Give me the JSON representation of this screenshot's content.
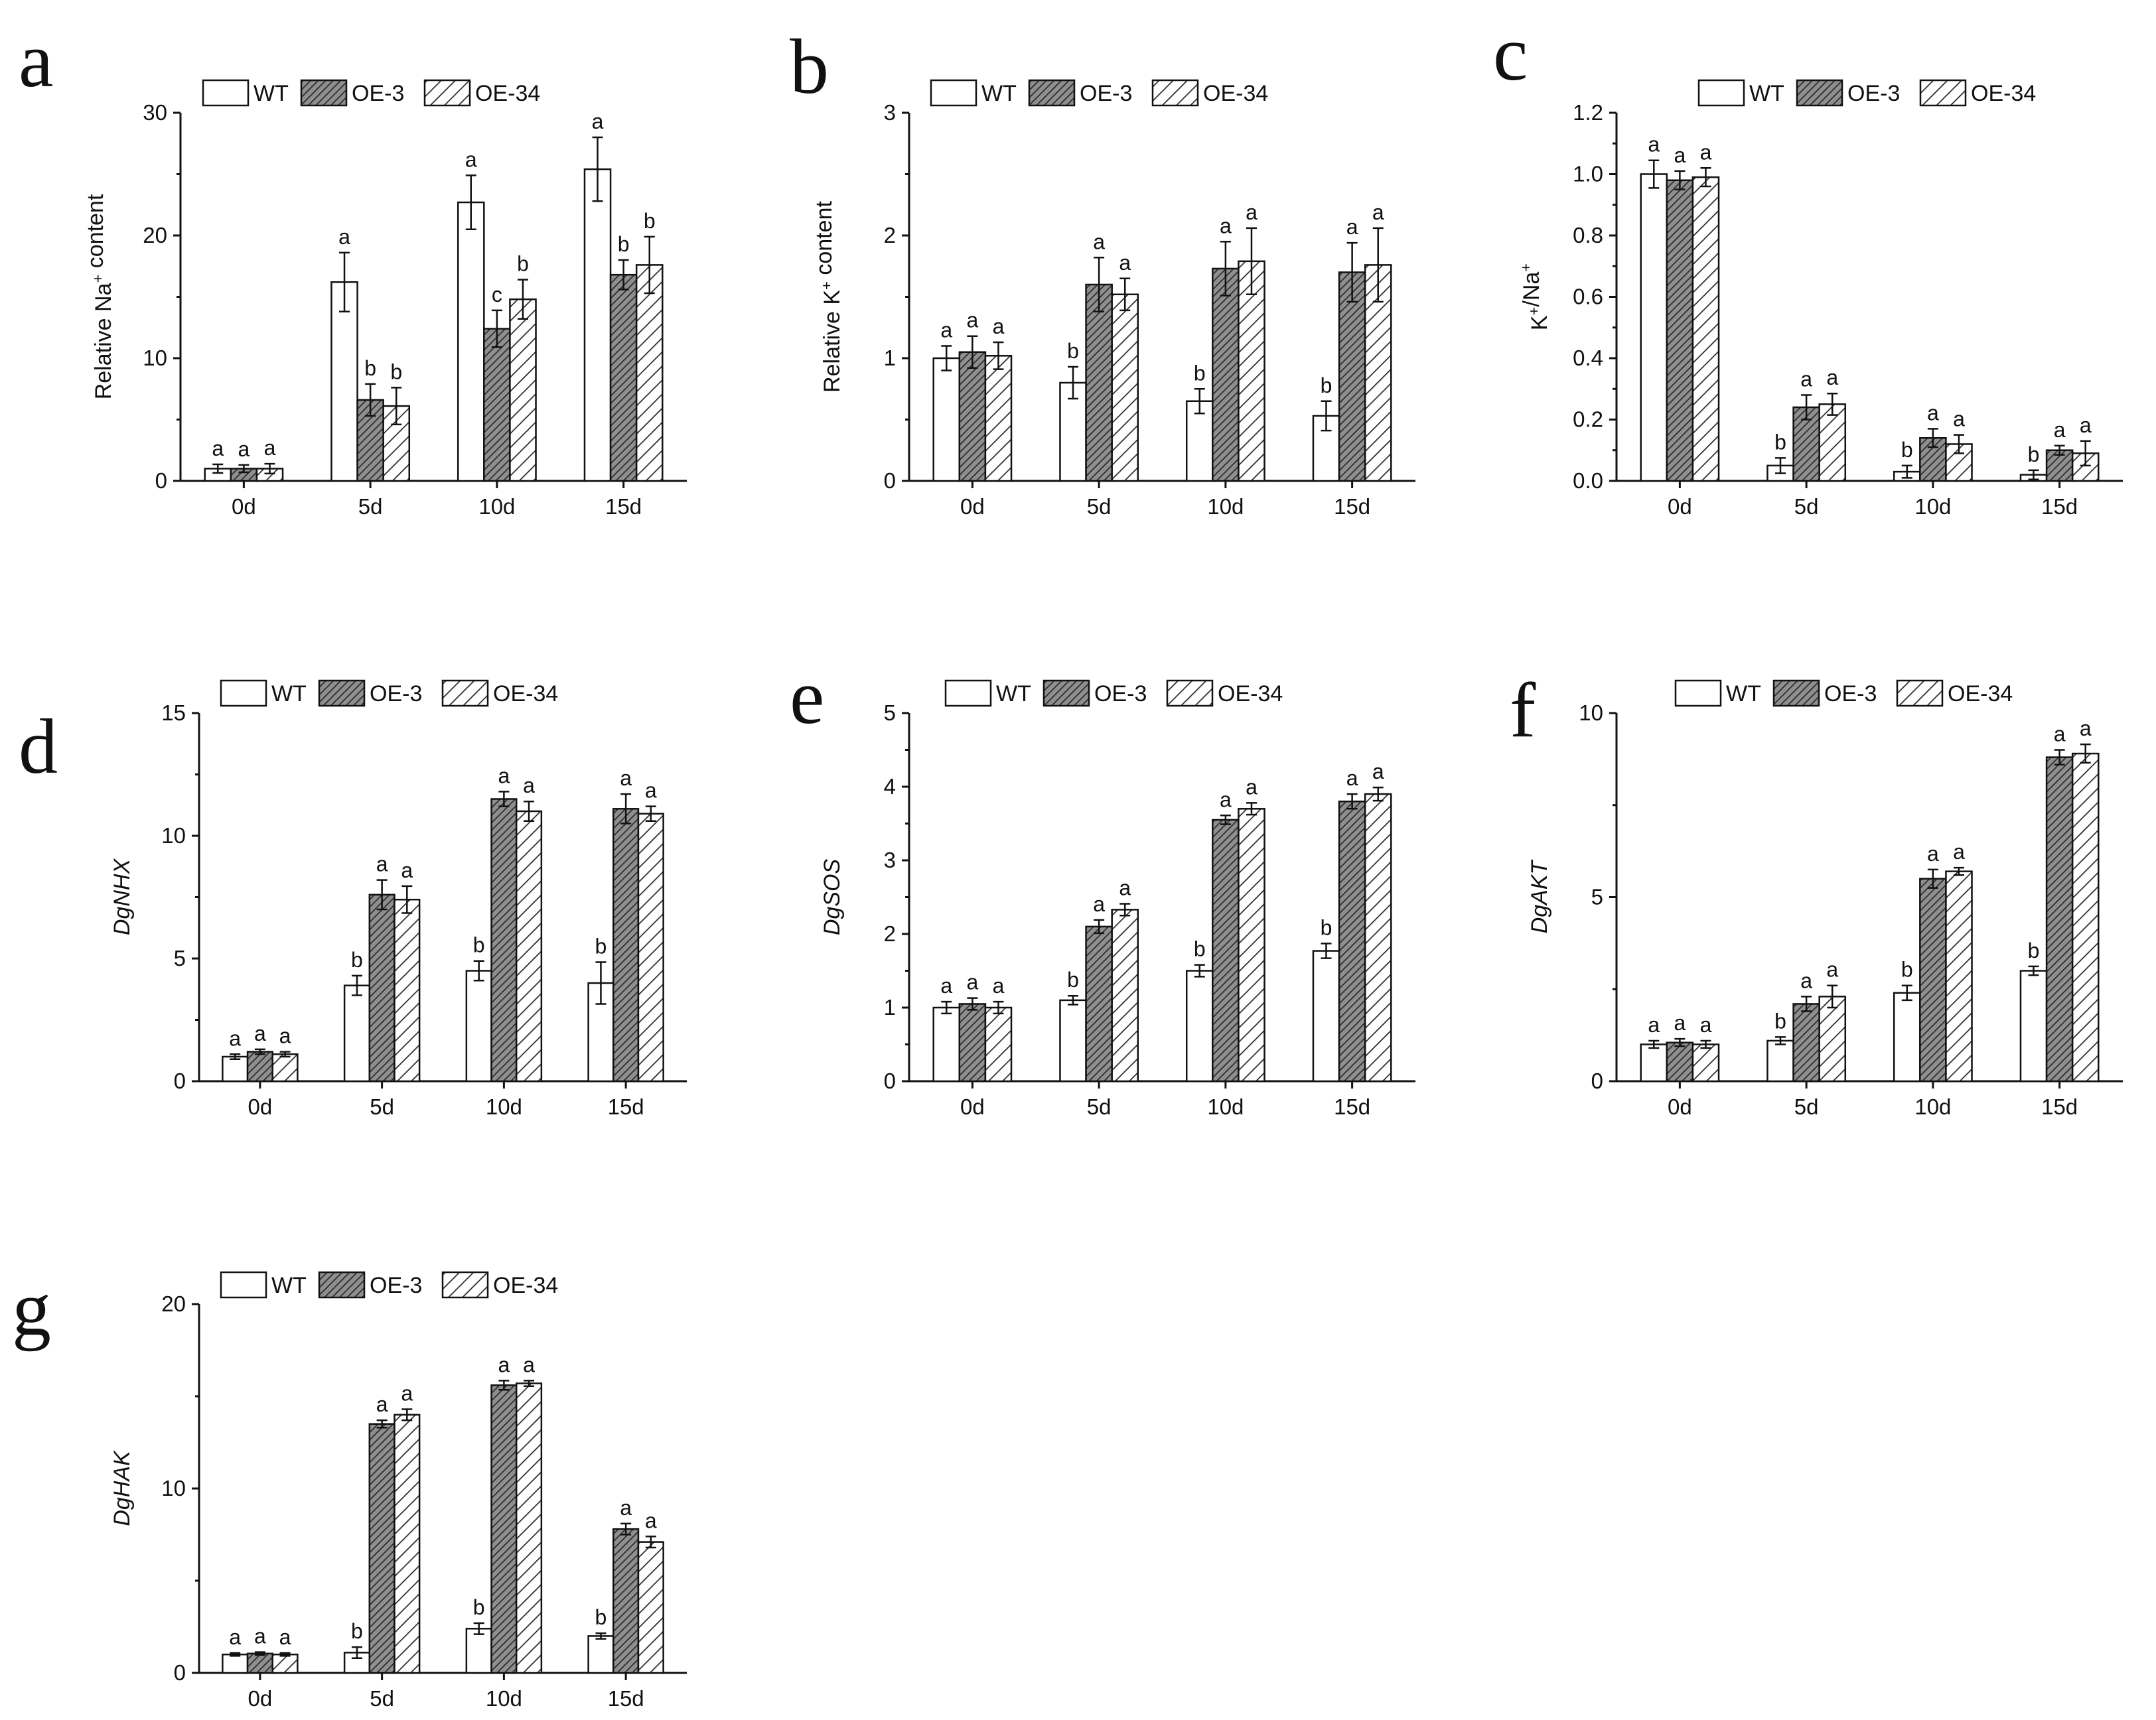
{
  "legend_labels": [
    "WT",
    "OE-3",
    "OE-34"
  ],
  "series_styles": [
    {
      "name": "WT",
      "fill": "#ffffff",
      "pattern": "none"
    },
    {
      "name": "OE-3",
      "fill": "#8f8f8f",
      "pattern": "dense-hatch"
    },
    {
      "name": "OE-34",
      "fill": "#ffffff",
      "pattern": "diagonal-hatch"
    }
  ],
  "chart_data": [
    {
      "panel": "a",
      "type": "bar",
      "categories": [
        "0d",
        "5d",
        "10d",
        "15d"
      ],
      "ylabel_parts": [
        {
          "t": "Relative Na"
        },
        {
          "t": "+",
          "sup": true
        },
        {
          "t": " content"
        }
      ],
      "ylabel_italic": false,
      "ylim": [
        0,
        30
      ],
      "yticks": [
        0,
        10,
        20,
        30
      ],
      "ytick_labels": [
        "0",
        "10",
        "20",
        "30"
      ],
      "series": [
        {
          "name": "WT",
          "values": [
            1.0,
            16.2,
            22.7,
            25.4
          ],
          "errors": [
            0.35,
            2.4,
            2.2,
            2.6
          ],
          "letters": [
            "a",
            "a",
            "a",
            "a"
          ]
        },
        {
          "name": "OE-3",
          "values": [
            1.0,
            6.6,
            12.4,
            16.8
          ],
          "errors": [
            0.3,
            1.3,
            1.5,
            1.2
          ],
          "letters": [
            "a",
            "b",
            "c",
            "b"
          ]
        },
        {
          "name": "OE-34",
          "values": [
            1.0,
            6.1,
            14.8,
            17.6
          ],
          "errors": [
            0.4,
            1.5,
            1.6,
            2.3
          ],
          "letters": [
            "a",
            "b",
            "b",
            "b"
          ]
        }
      ]
    },
    {
      "panel": "b",
      "type": "bar",
      "categories": [
        "0d",
        "5d",
        "10d",
        "15d"
      ],
      "ylabel_parts": [
        {
          "t": "Relative K"
        },
        {
          "t": "+",
          "sup": true
        },
        {
          "t": " content"
        }
      ],
      "ylabel_italic": false,
      "ylim": [
        0,
        3
      ],
      "yticks": [
        0,
        1,
        2,
        3
      ],
      "ytick_labels": [
        "0",
        "1",
        "2",
        "3"
      ],
      "series": [
        {
          "name": "WT",
          "values": [
            1.0,
            0.8,
            0.65,
            0.53
          ],
          "errors": [
            0.1,
            0.13,
            0.1,
            0.12
          ],
          "letters": [
            "a",
            "b",
            "b",
            "b"
          ]
        },
        {
          "name": "OE-3",
          "values": [
            1.05,
            1.6,
            1.73,
            1.7
          ],
          "errors": [
            0.13,
            0.22,
            0.22,
            0.24
          ],
          "letters": [
            "a",
            "a",
            "a",
            "a"
          ]
        },
        {
          "name": "OE-34",
          "values": [
            1.02,
            1.52,
            1.79,
            1.76
          ],
          "errors": [
            0.11,
            0.13,
            0.27,
            0.3
          ],
          "letters": [
            "a",
            "a",
            "a",
            "a"
          ]
        }
      ]
    },
    {
      "panel": "c",
      "type": "bar",
      "categories": [
        "0d",
        "5d",
        "10d",
        "15d"
      ],
      "ylabel_parts": [
        {
          "t": "K"
        },
        {
          "t": "+",
          "sup": true
        },
        {
          "t": "/Na"
        },
        {
          "t": "+",
          "sup": true
        }
      ],
      "ylabel_italic": false,
      "ylim": [
        0,
        1.2
      ],
      "yticks": [
        0,
        0.2,
        0.4,
        0.6,
        0.8,
        1.0,
        1.2
      ],
      "ytick_labels": [
        "0.0",
        "0.2",
        "0.4",
        "0.6",
        "0.8",
        "1.0",
        "1.2"
      ],
      "series": [
        {
          "name": "WT",
          "values": [
            1.0,
            0.05,
            0.03,
            0.02
          ],
          "errors": [
            0.045,
            0.025,
            0.02,
            0.015
          ],
          "letters": [
            "a",
            "b",
            "b",
            "b"
          ]
        },
        {
          "name": "OE-3",
          "values": [
            0.98,
            0.24,
            0.14,
            0.1
          ],
          "errors": [
            0.03,
            0.04,
            0.03,
            0.015
          ],
          "letters": [
            "a",
            "a",
            "a",
            "a"
          ]
        },
        {
          "name": "OE-34",
          "values": [
            0.99,
            0.25,
            0.12,
            0.09
          ],
          "errors": [
            0.03,
            0.035,
            0.03,
            0.04
          ],
          "letters": [
            "a",
            "a",
            "a",
            "a"
          ]
        }
      ]
    },
    {
      "panel": "d",
      "type": "bar",
      "categories": [
        "0d",
        "5d",
        "10d",
        "15d"
      ],
      "ylabel_parts": [
        {
          "t": "DgNHX"
        }
      ],
      "ylabel_italic": true,
      "ylim": [
        0,
        15
      ],
      "yticks": [
        0,
        5,
        10,
        15
      ],
      "ytick_labels": [
        "0",
        "5",
        "10",
        "15"
      ],
      "series": [
        {
          "name": "WT",
          "values": [
            1.0,
            3.9,
            4.5,
            4.0
          ],
          "errors": [
            0.1,
            0.4,
            0.4,
            0.85
          ],
          "letters": [
            "a",
            "b",
            "b",
            "b"
          ]
        },
        {
          "name": "OE-3",
          "values": [
            1.2,
            7.6,
            11.5,
            11.1
          ],
          "errors": [
            0.1,
            0.6,
            0.3,
            0.6
          ],
          "letters": [
            "a",
            "a",
            "a",
            "a"
          ]
        },
        {
          "name": "OE-34",
          "values": [
            1.1,
            7.4,
            11.0,
            10.9
          ],
          "errors": [
            0.1,
            0.55,
            0.4,
            0.3
          ],
          "letters": [
            "a",
            "a",
            "a",
            "a"
          ]
        }
      ]
    },
    {
      "panel": "e",
      "type": "bar",
      "categories": [
        "0d",
        "5d",
        "10d",
        "15d"
      ],
      "ylabel_parts": [
        {
          "t": "DgSOS"
        }
      ],
      "ylabel_italic": true,
      "ylim": [
        0,
        5
      ],
      "yticks": [
        0,
        1,
        2,
        3,
        4,
        5
      ],
      "ytick_labels": [
        "0",
        "1",
        "2",
        "3",
        "4",
        "5"
      ],
      "series": [
        {
          "name": "WT",
          "values": [
            1.0,
            1.1,
            1.5,
            1.77
          ],
          "errors": [
            0.08,
            0.06,
            0.08,
            0.1
          ],
          "letters": [
            "a",
            "b",
            "b",
            "b"
          ]
        },
        {
          "name": "OE-3",
          "values": [
            1.05,
            2.1,
            3.55,
            3.8
          ],
          "errors": [
            0.08,
            0.09,
            0.06,
            0.1
          ],
          "letters": [
            "a",
            "a",
            "a",
            "a"
          ]
        },
        {
          "name": "OE-34",
          "values": [
            1.0,
            2.33,
            3.7,
            3.9
          ],
          "errors": [
            0.08,
            0.08,
            0.08,
            0.09
          ],
          "letters": [
            "a",
            "a",
            "a",
            "a"
          ]
        }
      ]
    },
    {
      "panel": "f",
      "type": "bar",
      "categories": [
        "0d",
        "5d",
        "10d",
        "15d"
      ],
      "ylabel_parts": [
        {
          "t": "DgAKT"
        }
      ],
      "ylabel_italic": true,
      "ylim": [
        0,
        10
      ],
      "yticks": [
        0,
        5,
        10
      ],
      "ytick_labels": [
        "0",
        "5",
        "10"
      ],
      "series": [
        {
          "name": "WT",
          "values": [
            1.0,
            1.1,
            2.4,
            3.0
          ],
          "errors": [
            0.1,
            0.1,
            0.2,
            0.12
          ],
          "letters": [
            "a",
            "b",
            "b",
            "b"
          ]
        },
        {
          "name": "OE-3",
          "values": [
            1.05,
            2.1,
            5.5,
            8.8
          ],
          "errors": [
            0.1,
            0.2,
            0.25,
            0.2
          ],
          "letters": [
            "a",
            "a",
            "a",
            "a"
          ]
        },
        {
          "name": "OE-34",
          "values": [
            1.0,
            2.3,
            5.7,
            8.9
          ],
          "errors": [
            0.1,
            0.3,
            0.1,
            0.25
          ],
          "letters": [
            "a",
            "a",
            "a",
            "a"
          ]
        }
      ]
    },
    {
      "panel": "g",
      "type": "bar",
      "categories": [
        "0d",
        "5d",
        "10d",
        "15d"
      ],
      "ylabel_parts": [
        {
          "t": "DgHAK"
        }
      ],
      "ylabel_italic": true,
      "ylim": [
        0,
        20
      ],
      "yticks": [
        0,
        10,
        20
      ],
      "ytick_labels": [
        "0",
        "10",
        "20"
      ],
      "series": [
        {
          "name": "WT",
          "values": [
            1.0,
            1.1,
            2.4,
            2.0
          ],
          "errors": [
            0.08,
            0.3,
            0.3,
            0.15
          ],
          "letters": [
            "a",
            "b",
            "b",
            "b"
          ]
        },
        {
          "name": "OE-3",
          "values": [
            1.05,
            13.5,
            15.6,
            7.8
          ],
          "errors": [
            0.08,
            0.2,
            0.25,
            0.3
          ],
          "letters": [
            "a",
            "a",
            "a",
            "a"
          ]
        },
        {
          "name": "OE-34",
          "values": [
            1.0,
            14.0,
            15.7,
            7.1
          ],
          "errors": [
            0.08,
            0.3,
            0.15,
            0.3
          ],
          "letters": [
            "a",
            "a",
            "a",
            "a"
          ]
        }
      ]
    }
  ]
}
